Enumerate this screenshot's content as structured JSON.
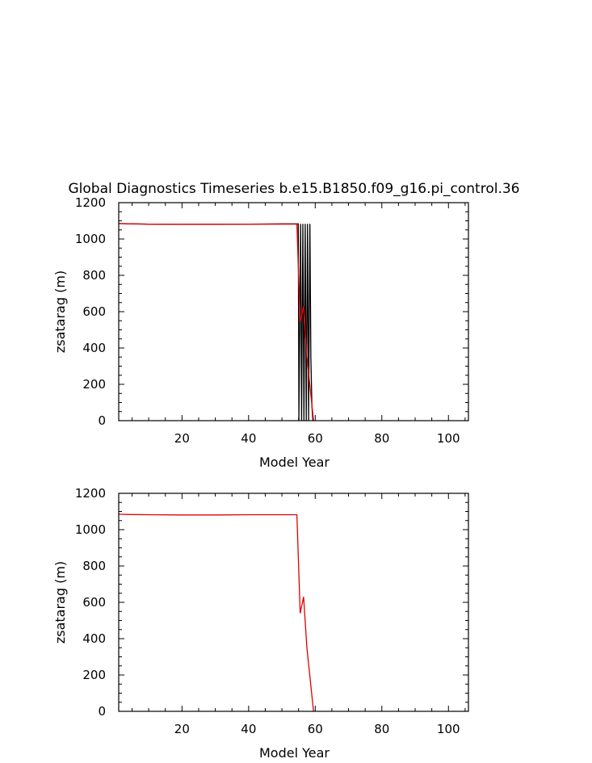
{
  "figure_title": "Global Diagnostics Timeseries b.e15.B1850.f09_g16.pi_control.36",
  "colors": {
    "black_series": "#000000",
    "red_series": "#e00000",
    "axes": "#000000"
  },
  "chart_data": [
    {
      "type": "line",
      "title": "Global Diagnostics Timeseries b.e15.B1850.f09_g16.pi_control.36",
      "xlabel": "Model Year",
      "ylabel": "zsatarag (m)",
      "xlim": [
        1,
        106
      ],
      "ylim": [
        0,
        1200
      ],
      "xticks": [
        20,
        40,
        60,
        80,
        100
      ],
      "yticks": [
        0,
        200,
        400,
        600,
        800,
        1000,
        1200
      ],
      "grid": false,
      "series": [
        {
          "color": "#000000",
          "style": "monthly",
          "x": [
            1,
            10,
            20,
            30,
            40,
            50,
            54.2,
            54.9,
            55.1,
            55.6,
            55.9,
            56.3,
            56.6,
            57.0,
            57.3,
            57.7,
            58.0,
            58.4,
            58.7,
            59.0,
            59.3
          ],
          "y": [
            1085,
            1082,
            1081,
            1082,
            1082,
            1083,
            1083,
            1083,
            0,
            1083,
            0,
            1083,
            0,
            1083,
            0,
            1083,
            0,
            1083,
            350,
            80,
            0
          ]
        },
        {
          "color": "#e00000",
          "style": "annual",
          "x": [
            1,
            5,
            10,
            20,
            30,
            40,
            50,
            54.5,
            55.5,
            56.5,
            57.5,
            59.5
          ],
          "y": [
            1085,
            1083,
            1082,
            1081,
            1081,
            1082,
            1082,
            1082,
            540,
            630,
            350,
            0
          ]
        }
      ]
    },
    {
      "type": "line",
      "title": "",
      "xlabel": "Model Year",
      "ylabel": "zsatarag (m)",
      "xlim": [
        1,
        106
      ],
      "ylim": [
        0,
        1200
      ],
      "xticks": [
        20,
        40,
        60,
        80,
        100
      ],
      "yticks": [
        0,
        200,
        400,
        600,
        800,
        1000,
        1200
      ],
      "grid": false,
      "series": [
        {
          "color": "#e00000",
          "style": "annual",
          "x": [
            1,
            5,
            10,
            20,
            30,
            40,
            50,
            54.5,
            55.5,
            56.5,
            57.5,
            59.5
          ],
          "y": [
            1085,
            1083,
            1082,
            1081,
            1081,
            1082,
            1082,
            1082,
            540,
            630,
            350,
            0
          ]
        }
      ]
    }
  ]
}
